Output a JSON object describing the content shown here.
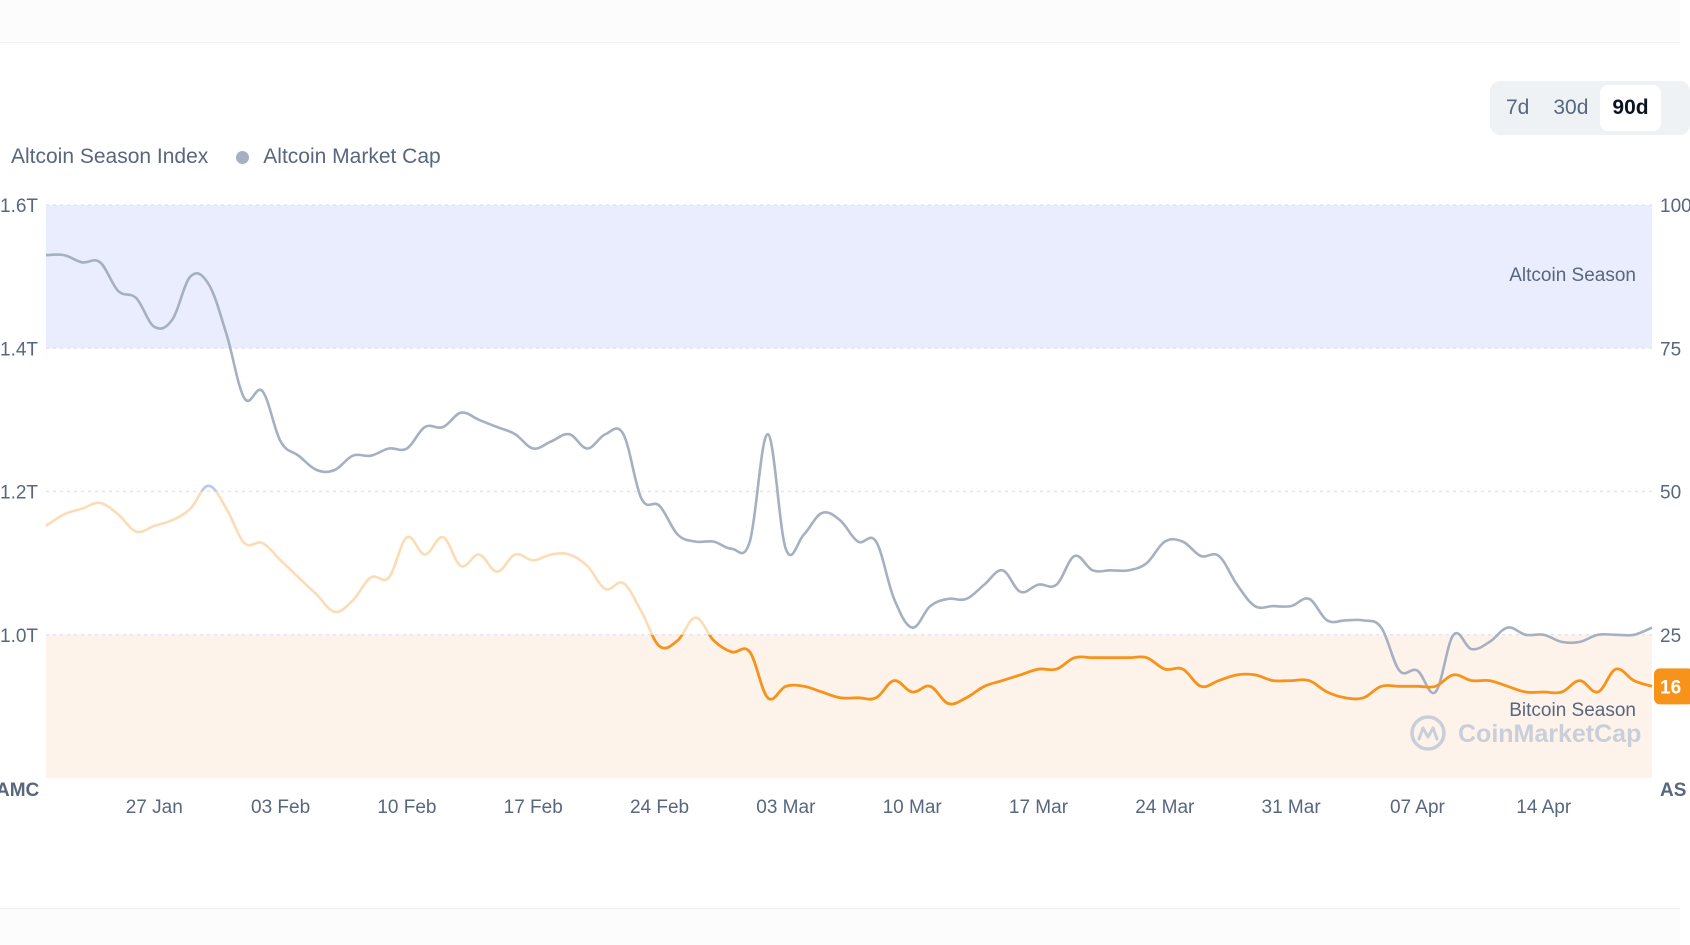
{
  "range_tabs": [
    {
      "label": "7d",
      "active": false
    },
    {
      "label": "30d",
      "active": false
    },
    {
      "label": "90d",
      "active": true
    }
  ],
  "watermark": "CoinMarketCap",
  "colors": {
    "index_orange": "#f7931a",
    "index_faded": "#fcdcb4",
    "index_blue_faded": "#b9c8f5",
    "market_cap_gray": "#a6b0c3",
    "altcoin_band": "#eaedfd",
    "bitcoin_band": "#fdf3ea",
    "grid": "#e3e6ec"
  },
  "chart_data": {
    "type": "line",
    "title": "",
    "legend": [
      "Altcoin Season Index",
      "Altcoin Market Cap"
    ],
    "legend_placement": "top-left",
    "grid": true,
    "x_ticks": [
      "27 Jan",
      "03 Feb",
      "10 Feb",
      "17 Feb",
      "24 Feb",
      "03 Mar",
      "10 Mar",
      "17 Mar",
      "24 Mar",
      "31 Mar",
      "07 Apr",
      "14 Apr"
    ],
    "x_range": [
      "2025-01-21",
      "2025-04-20"
    ],
    "left_axis": {
      "title": "AMC",
      "ticks": [
        "1.6T",
        "1.4T",
        "1.2T",
        "1.0T"
      ],
      "range": [
        0.8,
        1.6
      ],
      "unit": "T"
    },
    "right_axis": {
      "title": "AS",
      "ticks": [
        "100",
        "75",
        "50",
        "25"
      ],
      "range": [
        0,
        100
      ]
    },
    "bands": [
      {
        "label": "Altcoin Season",
        "from": 75,
        "to": 100
      },
      {
        "label": "Bitcoin Season",
        "from": 0,
        "to": 25
      }
    ],
    "current_value": "16",
    "series": [
      {
        "name": "Altcoin Market Cap",
        "axis": "left",
        "points": [
          [
            "2025-01-21",
            1.53
          ],
          [
            "2025-01-22",
            1.53
          ],
          [
            "2025-01-23",
            1.52
          ],
          [
            "2025-01-24",
            1.52
          ],
          [
            "2025-01-25",
            1.48
          ],
          [
            "2025-01-26",
            1.47
          ],
          [
            "2025-01-27",
            1.43
          ],
          [
            "2025-01-28",
            1.44
          ],
          [
            "2025-01-29",
            1.5
          ],
          [
            "2025-01-30",
            1.49
          ],
          [
            "2025-01-31",
            1.42
          ],
          [
            "2025-02-01",
            1.33
          ],
          [
            "2025-02-02",
            1.34
          ],
          [
            "2025-02-03",
            1.27
          ],
          [
            "2025-02-04",
            1.25
          ],
          [
            "2025-02-05",
            1.23
          ],
          [
            "2025-02-06",
            1.23
          ],
          [
            "2025-02-07",
            1.25
          ],
          [
            "2025-02-08",
            1.25
          ],
          [
            "2025-02-09",
            1.26
          ],
          [
            "2025-02-10",
            1.26
          ],
          [
            "2025-02-11",
            1.29
          ],
          [
            "2025-02-12",
            1.29
          ],
          [
            "2025-02-13",
            1.31
          ],
          [
            "2025-02-14",
            1.3
          ],
          [
            "2025-02-15",
            1.29
          ],
          [
            "2025-02-16",
            1.28
          ],
          [
            "2025-02-17",
            1.26
          ],
          [
            "2025-02-18",
            1.27
          ],
          [
            "2025-02-19",
            1.28
          ],
          [
            "2025-02-20",
            1.26
          ],
          [
            "2025-02-21",
            1.28
          ],
          [
            "2025-02-22",
            1.28
          ],
          [
            "2025-02-23",
            1.19
          ],
          [
            "2025-02-24",
            1.18
          ],
          [
            "2025-02-25",
            1.14
          ],
          [
            "2025-02-26",
            1.13
          ],
          [
            "2025-02-27",
            1.13
          ],
          [
            "2025-02-28",
            1.12
          ],
          [
            "2025-03-01",
            1.13
          ],
          [
            "2025-03-02",
            1.28
          ],
          [
            "2025-03-03",
            1.12
          ],
          [
            "2025-03-04",
            1.14
          ],
          [
            "2025-03-05",
            1.17
          ],
          [
            "2025-03-06",
            1.16
          ],
          [
            "2025-03-07",
            1.13
          ],
          [
            "2025-03-08",
            1.13
          ],
          [
            "2025-03-09",
            1.05
          ],
          [
            "2025-03-10",
            1.01
          ],
          [
            "2025-03-11",
            1.04
          ],
          [
            "2025-03-12",
            1.05
          ],
          [
            "2025-03-13",
            1.05
          ],
          [
            "2025-03-14",
            1.07
          ],
          [
            "2025-03-15",
            1.09
          ],
          [
            "2025-03-16",
            1.06
          ],
          [
            "2025-03-17",
            1.07
          ],
          [
            "2025-03-18",
            1.07
          ],
          [
            "2025-03-19",
            1.11
          ],
          [
            "2025-03-20",
            1.09
          ],
          [
            "2025-03-21",
            1.09
          ],
          [
            "2025-03-22",
            1.09
          ],
          [
            "2025-03-23",
            1.1
          ],
          [
            "2025-03-24",
            1.13
          ],
          [
            "2025-03-25",
            1.13
          ],
          [
            "2025-03-26",
            1.11
          ],
          [
            "2025-03-27",
            1.11
          ],
          [
            "2025-03-28",
            1.07
          ],
          [
            "2025-03-29",
            1.04
          ],
          [
            "2025-03-30",
            1.04
          ],
          [
            "2025-03-31",
            1.04
          ],
          [
            "2025-04-01",
            1.05
          ],
          [
            "2025-04-02",
            1.02
          ],
          [
            "2025-04-03",
            1.02
          ],
          [
            "2025-04-04",
            1.02
          ],
          [
            "2025-04-05",
            1.01
          ],
          [
            "2025-04-06",
            0.95
          ],
          [
            "2025-04-07",
            0.95
          ],
          [
            "2025-04-08",
            0.92
          ],
          [
            "2025-04-09",
            1.0
          ],
          [
            "2025-04-10",
            0.98
          ],
          [
            "2025-04-11",
            0.99
          ],
          [
            "2025-04-12",
            1.01
          ],
          [
            "2025-04-13",
            1.0
          ],
          [
            "2025-04-14",
            1.0
          ],
          [
            "2025-04-15",
            0.99
          ],
          [
            "2025-04-16",
            0.99
          ],
          [
            "2025-04-17",
            1.0
          ],
          [
            "2025-04-18",
            1.0
          ],
          [
            "2025-04-19",
            1.0
          ],
          [
            "2025-04-20",
            1.01
          ]
        ]
      },
      {
        "name": "Altcoin Season Index",
        "axis": "right",
        "points": [
          [
            "2025-01-21",
            44
          ],
          [
            "2025-01-22",
            46
          ],
          [
            "2025-01-23",
            47
          ],
          [
            "2025-01-24",
            48
          ],
          [
            "2025-01-25",
            46
          ],
          [
            "2025-01-26",
            43
          ],
          [
            "2025-01-27",
            44
          ],
          [
            "2025-01-28",
            45
          ],
          [
            "2025-01-29",
            47
          ],
          [
            "2025-01-30",
            51
          ],
          [
            "2025-01-31",
            47
          ],
          [
            "2025-02-01",
            41
          ],
          [
            "2025-02-02",
            41
          ],
          [
            "2025-02-03",
            38
          ],
          [
            "2025-02-04",
            35
          ],
          [
            "2025-02-05",
            32
          ],
          [
            "2025-02-06",
            29
          ],
          [
            "2025-02-07",
            31
          ],
          [
            "2025-02-08",
            35
          ],
          [
            "2025-02-09",
            35
          ],
          [
            "2025-02-10",
            42
          ],
          [
            "2025-02-11",
            39
          ],
          [
            "2025-02-12",
            42
          ],
          [
            "2025-02-13",
            37
          ],
          [
            "2025-02-14",
            39
          ],
          [
            "2025-02-15",
            36
          ],
          [
            "2025-02-16",
            39
          ],
          [
            "2025-02-17",
            38
          ],
          [
            "2025-02-18",
            39
          ],
          [
            "2025-02-19",
            39
          ],
          [
            "2025-02-20",
            37
          ],
          [
            "2025-02-21",
            33
          ],
          [
            "2025-02-22",
            34
          ],
          [
            "2025-02-23",
            29
          ],
          [
            "2025-02-24",
            23
          ],
          [
            "2025-02-25",
            24
          ],
          [
            "2025-02-26",
            28
          ],
          [
            "2025-02-27",
            24
          ],
          [
            "2025-02-28",
            22
          ],
          [
            "2025-03-01",
            22
          ],
          [
            "2025-03-02",
            14
          ],
          [
            "2025-03-03",
            16
          ],
          [
            "2025-03-04",
            16
          ],
          [
            "2025-03-05",
            15
          ],
          [
            "2025-03-06",
            14
          ],
          [
            "2025-03-07",
            14
          ],
          [
            "2025-03-08",
            14
          ],
          [
            "2025-03-09",
            17
          ],
          [
            "2025-03-10",
            15
          ],
          [
            "2025-03-11",
            16
          ],
          [
            "2025-03-12",
            13
          ],
          [
            "2025-03-13",
            14
          ],
          [
            "2025-03-14",
            16
          ],
          [
            "2025-03-15",
            17
          ],
          [
            "2025-03-16",
            18
          ],
          [
            "2025-03-17",
            19
          ],
          [
            "2025-03-18",
            19
          ],
          [
            "2025-03-19",
            21
          ],
          [
            "2025-03-20",
            21
          ],
          [
            "2025-03-21",
            21
          ],
          [
            "2025-03-22",
            21
          ],
          [
            "2025-03-23",
            21
          ],
          [
            "2025-03-24",
            19
          ],
          [
            "2025-03-25",
            19
          ],
          [
            "2025-03-26",
            16
          ],
          [
            "2025-03-27",
            17
          ],
          [
            "2025-03-28",
            18
          ],
          [
            "2025-03-29",
            18
          ],
          [
            "2025-03-30",
            17
          ],
          [
            "2025-03-31",
            17
          ],
          [
            "2025-04-01",
            17
          ],
          [
            "2025-04-02",
            15
          ],
          [
            "2025-04-03",
            14
          ],
          [
            "2025-04-04",
            14
          ],
          [
            "2025-04-05",
            16
          ],
          [
            "2025-04-06",
            16
          ],
          [
            "2025-04-07",
            16
          ],
          [
            "2025-04-08",
            16
          ],
          [
            "2025-04-09",
            18
          ],
          [
            "2025-04-10",
            17
          ],
          [
            "2025-04-11",
            17
          ],
          [
            "2025-04-12",
            16
          ],
          [
            "2025-04-13",
            15
          ],
          [
            "2025-04-14",
            15
          ],
          [
            "2025-04-15",
            15
          ],
          [
            "2025-04-16",
            17
          ],
          [
            "2025-04-17",
            15
          ],
          [
            "2025-04-18",
            19
          ],
          [
            "2025-04-19",
            17
          ],
          [
            "2025-04-20",
            16
          ]
        ]
      }
    ]
  }
}
